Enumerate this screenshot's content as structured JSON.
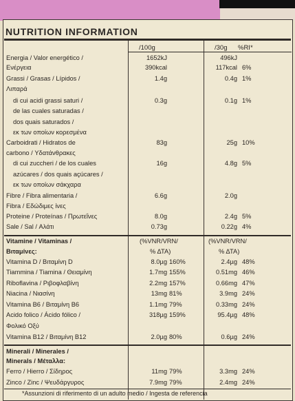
{
  "title": "NUTRITION INFORMATION",
  "columns": {
    "per100": "/100g",
    "per30": "/30g",
    "ri": "%RI*"
  },
  "macros": [
    {
      "name": "Energia / Valor energético /",
      "v100": "1652kJ",
      "v30": "496kJ",
      "ri": ""
    },
    {
      "name": "Ενέργεια",
      "v100": "390kcal",
      "v30": "117kcal",
      "ri": "6%"
    },
    {
      "name": "Grassi / Grasas / Lípidos /",
      "v100": "1.4g",
      "v30": "0.4g",
      "ri": "1%"
    },
    {
      "name": "Λιπαρά",
      "v100": "",
      "v30": "",
      "ri": ""
    },
    {
      "name": "di cui acidi grassi saturi /",
      "v100": "0.3g",
      "v30": "0.1g",
      "ri": "1%"
    },
    {
      "name": "de las cuales saturadas /",
      "v100": "",
      "v30": "",
      "ri": ""
    },
    {
      "name": "dos quais saturados /",
      "v100": "",
      "v30": "",
      "ri": ""
    },
    {
      "name": "εκ των οποίων κορεσμένα",
      "v100": "",
      "v30": "",
      "ri": ""
    },
    {
      "name": "Carboidrati / Hidratos de",
      "v100": "83g",
      "v30": "25g",
      "ri": "10%"
    },
    {
      "name": "carbono / Υδατάνθρακες",
      "v100": "",
      "v30": "",
      "ri": ""
    },
    {
      "name": "di cui zuccheri / de los cuales",
      "v100": "16g",
      "v30": "4.8g",
      "ri": "5%"
    },
    {
      "name": "azúcares / dos quais açúcares /",
      "v100": "",
      "v30": "",
      "ri": ""
    },
    {
      "name": "εκ των οποίων σάκχαρα",
      "v100": "",
      "v30": "",
      "ri": ""
    },
    {
      "name": "Fibre / Fibra alimentaria /",
      "v100": "6.6g",
      "v30": "2.0g",
      "ri": ""
    },
    {
      "name": "Fibra / Εδώδιμες ίνες",
      "v100": "",
      "v30": "",
      "ri": ""
    },
    {
      "name": "Proteine / Proteínas / Πρωτεΐνες",
      "v100": "8.0g",
      "v30": "2.4g",
      "ri": "5%"
    },
    {
      "name": "Sale / Sal / Αλάτι",
      "v100": "0.73g",
      "v30": "0.22g",
      "ri": "4%"
    }
  ],
  "vitamins": {
    "heading_1": "Vitamine / Vitaminas /",
    "heading_2": "Βιταμίνες:",
    "col_1a": "(%VNR/VRN/",
    "col_1b": "% ΔΤΑ)",
    "col_2a": "(%VNR/VRN/",
    "col_2b": "% ΔΤΑ)",
    "rows": [
      {
        "name": "Vitamina D / Βιταμίνη D",
        "v100": "8.0µg",
        "p100": "160%",
        "v30": "2.4µg",
        "p30": "48%"
      },
      {
        "name": "Tiammina / Tiamina / Θειαμίνη",
        "v100": "1.7mg",
        "p100": "155%",
        "v30": "0.51mg",
        "p30": "46%"
      },
      {
        "name": "Riboflavina / Ριβοφλαβίνη",
        "v100": "2.2mg",
        "p100": "157%",
        "v30": "0.66mg",
        "p30": "47%"
      },
      {
        "name": "Niacina / Νιασίνη",
        "v100": "13mg",
        "p100": "81%",
        "v30": "3.9mg",
        "p30": "24%"
      },
      {
        "name": "Vitamina B6 / Βιταμίνη B6",
        "v100": "1.1mg",
        "p100": "79%",
        "v30": "0.33mg",
        "p30": "24%"
      },
      {
        "name": "Acido folico / Ácido fólico /",
        "v100": "318µg",
        "p100": "159%",
        "v30": "95.4µg",
        "p30": "48%"
      },
      {
        "name": "Φολικό Οξύ",
        "v100": "",
        "p100": "",
        "v30": "",
        "p30": ""
      },
      {
        "name": "Vitamina B12 / Βιταμίνη B12",
        "v100": "2.0µg",
        "p100": "80%",
        "v30": "0.6µg",
        "p30": "24%"
      }
    ]
  },
  "minerals": {
    "heading_1": "Minerali / Minerales /",
    "heading_2": "Minerals / Μέταλλα:",
    "rows": [
      {
        "name": "Ferro / Hierro / Σίδηρος",
        "v100": "11mg",
        "p100": "79%",
        "v30": "3.3mg",
        "p30": "24%"
      },
      {
        "name": "Zinco / Zinc / Ψευδάργυρος",
        "v100": "7.9mg",
        "p100": "79%",
        "v30": "2.4mg",
        "p30": "24%"
      }
    ]
  },
  "footnote": "*Assunzioni di riferimento di un adulto medio / Ingesta de referencia"
}
